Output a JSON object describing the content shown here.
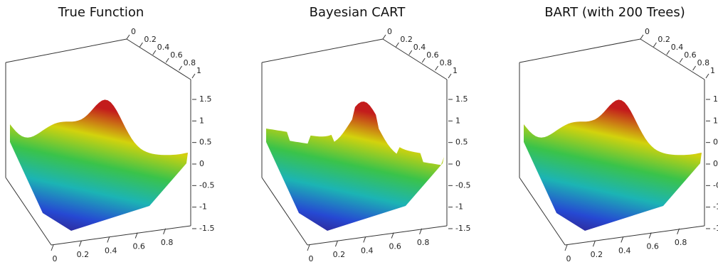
{
  "chart_data": [
    {
      "type": "surface3d",
      "title": "True Function",
      "xlim": [
        0,
        1
      ],
      "xticks": [
        0,
        0.2,
        0.4,
        0.6,
        0.8
      ],
      "ylim": [
        0,
        1
      ],
      "yticks": [
        0,
        0.2,
        0.4,
        0.6,
        0.8,
        1
      ],
      "zlim": [
        -1.5,
        1.5
      ],
      "zticks": [
        1.5,
        1,
        0.5,
        0,
        -0.5,
        -1,
        -1.5
      ]
    },
    {
      "type": "surface3d",
      "title": "Bayesian CART",
      "xlim": [
        0,
        1
      ],
      "xticks": [
        0,
        0.2,
        0.4,
        0.6,
        0.8
      ],
      "ylim": [
        0,
        1
      ],
      "yticks": [
        0,
        0.2,
        0.4,
        0.6,
        0.8,
        1
      ],
      "zlim": [
        -1.5,
        1.5
      ],
      "zticks": [
        1.5,
        1,
        0.5,
        0,
        -0.5,
        -1,
        -1.5
      ]
    },
    {
      "type": "surface3d",
      "title": "BART (with 200 Trees)",
      "xlim": [
        0,
        1
      ],
      "xticks": [
        0,
        0.2,
        0.4,
        0.6,
        0.8
      ],
      "ylim": [
        0,
        1
      ],
      "yticks": [
        0,
        0.2,
        0.4,
        0.6,
        0.8,
        1
      ],
      "zlim": [
        -1.5,
        1.5
      ],
      "zticks": [
        1.5,
        1,
        0.5,
        0,
        -0.5,
        -1,
        -1.5
      ]
    }
  ]
}
